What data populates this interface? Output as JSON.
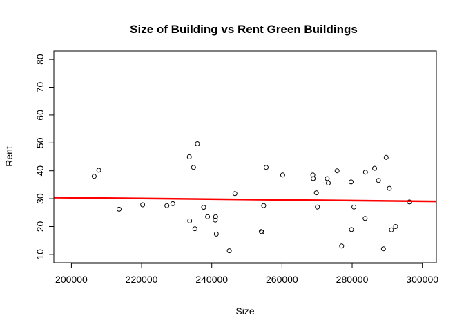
{
  "chart_data": {
    "type": "scatter",
    "title": "Size of Building vs Rent Green Buildings",
    "xlabel": "Size",
    "ylabel": "Rent",
    "xlim": [
      195000,
      304000
    ],
    "ylim": [
      7,
      83
    ],
    "x_ticks": [
      200000,
      220000,
      240000,
      260000,
      280000,
      300000
    ],
    "x_tick_labels": [
      "200000",
      "220000",
      "240000",
      "260000",
      "280000",
      "300000"
    ],
    "y_ticks": [
      10,
      20,
      30,
      40,
      50,
      60,
      70,
      80
    ],
    "y_tick_labels": [
      "10",
      "20",
      "30",
      "40",
      "50",
      "60",
      "70",
      "80"
    ],
    "grid": false,
    "series": [
      {
        "name": "buildings",
        "points": [
          [
            206500,
            38.0
          ],
          [
            207800,
            40.2
          ],
          [
            213600,
            26.2
          ],
          [
            220300,
            27.8
          ],
          [
            227200,
            27.5
          ],
          [
            228900,
            28.2
          ],
          [
            233600,
            45.0
          ],
          [
            233700,
            22.0
          ],
          [
            234800,
            41.2
          ],
          [
            235200,
            19.2
          ],
          [
            235900,
            49.7
          ],
          [
            237700,
            26.9
          ],
          [
            238800,
            23.5
          ],
          [
            241000,
            22.3
          ],
          [
            241100,
            23.5
          ],
          [
            241300,
            17.3
          ],
          [
            245000,
            11.3
          ],
          [
            246600,
            31.8
          ],
          [
            254100,
            18.2
          ],
          [
            254300,
            18.0
          ],
          [
            254800,
            27.5
          ],
          [
            255500,
            41.2
          ],
          [
            260200,
            38.5
          ],
          [
            268800,
            38.5
          ],
          [
            268900,
            37.2
          ],
          [
            269800,
            32.1
          ],
          [
            270100,
            27.0
          ],
          [
            272900,
            37.2
          ],
          [
            273200,
            35.6
          ],
          [
            275700,
            40.0
          ],
          [
            277000,
            13.0
          ],
          [
            279700,
            36.0
          ],
          [
            279800,
            18.9
          ],
          [
            280500,
            27.0
          ],
          [
            283700,
            22.9
          ],
          [
            283800,
            39.5
          ],
          [
            286400,
            40.9
          ],
          [
            287500,
            36.5
          ],
          [
            288900,
            12.0
          ],
          [
            289700,
            44.8
          ],
          [
            290600,
            33.7
          ],
          [
            291200,
            18.8
          ],
          [
            292400,
            20.0
          ],
          [
            296300,
            28.8
          ]
        ]
      }
    ],
    "trend_line": {
      "color": "#ff0000",
      "x": [
        195000,
        304000
      ],
      "y": [
        30.4,
        29.0
      ]
    }
  }
}
